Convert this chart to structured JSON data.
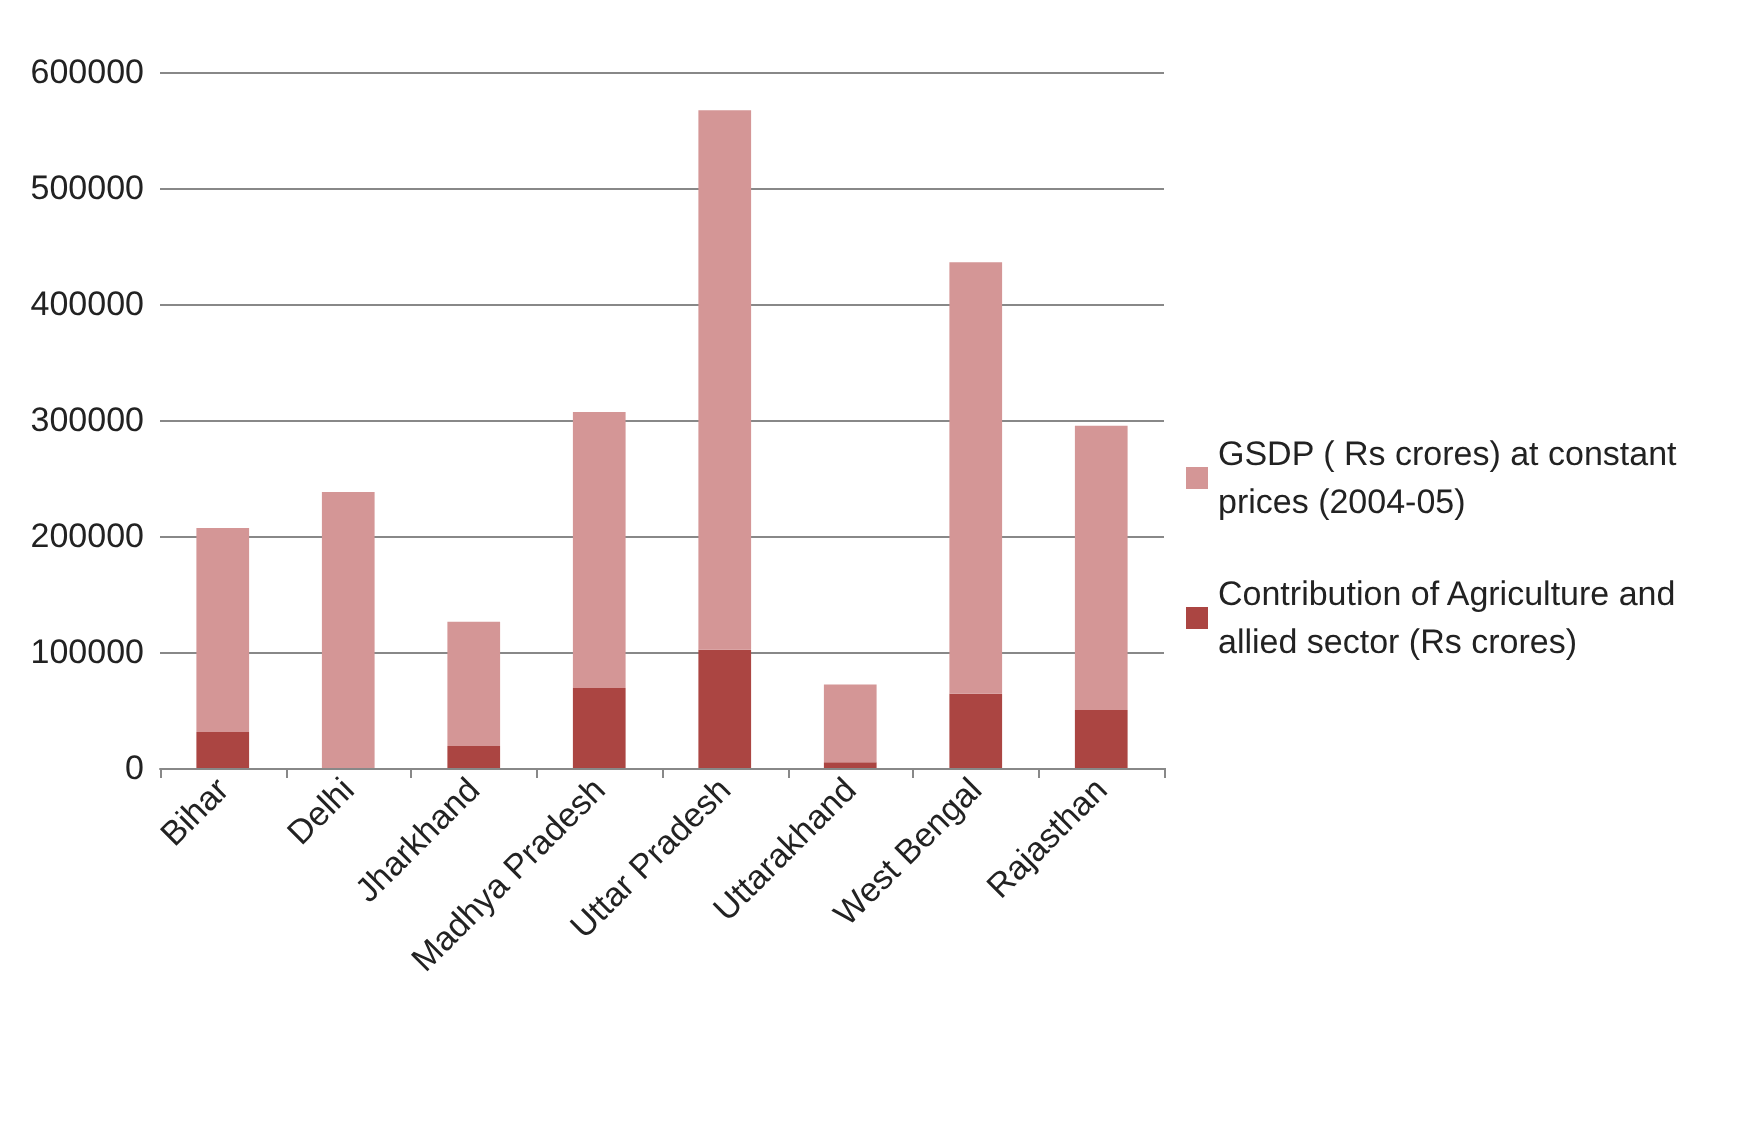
{
  "chart_data": {
    "type": "bar",
    "stacked": true,
    "categories": [
      "Bihar",
      "Delhi",
      "Jharkhand",
      "Madhya Pradesh",
      "Uttar Pradesh",
      "Uttarakhand",
      "West Bengal",
      "Rajasthan"
    ],
    "series": [
      {
        "name": "Contribution of Agriculture and allied sector (Rs crores)",
        "color": "#ab4542",
        "values": [
          31000,
          0,
          19000,
          69000,
          102000,
          5000,
          64000,
          50000
        ]
      },
      {
        "name": "GSDP ( Rs crores) at constant prices (2004-05)",
        "color": "#d49696",
        "values": [
          176000,
          238000,
          107000,
          238000,
          465000,
          67000,
          372000,
          245000
        ]
      }
    ],
    "ylim": [
      0,
      600000
    ],
    "yticks": [
      0,
      100000,
      200000,
      300000,
      400000,
      500000,
      600000
    ],
    "grid": "y",
    "legend": "right"
  }
}
